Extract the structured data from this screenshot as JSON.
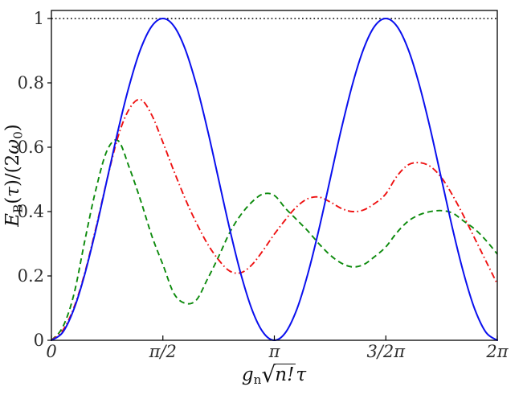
{
  "figure": {
    "background": "#ffffff",
    "frame_color": "#000000",
    "tick_label_color": "#2e2e2e"
  },
  "axes": {
    "x_axis": {
      "label_text": "g_n sqrt(n!) tau",
      "label_parts": {
        "symbol": "g",
        "symbol_sub": "n",
        "radical": "√",
        "radicand": "n!",
        "tau": "τ"
      }
    },
    "y_axis": {
      "label_text": "E_B(tau)/(2 omega_0)",
      "label_parts": {
        "E": "E",
        "E_sub": "B",
        "open": "(",
        "tau": "τ",
        "mid": ")/(2",
        "omega": "ω",
        "omega_sub": "0",
        "close": ")"
      }
    }
  },
  "chart_data": {
    "type": "line",
    "title": "",
    "xlabel": "g_n sqrt(n!) tau",
    "ylabel": "E_B(tau)/(2 omega_0)",
    "xlim": [
      0,
      6.2832
    ],
    "ylim": [
      0,
      1.025
    ],
    "grid": false,
    "legend": "none",
    "x_ticks": [
      {
        "value": 0,
        "label": "0"
      },
      {
        "value": 1.5708,
        "label": "π/2"
      },
      {
        "value": 3.1416,
        "label": "π"
      },
      {
        "value": 4.7124,
        "label": "3/2π"
      },
      {
        "value": 6.2832,
        "label": "2π"
      }
    ],
    "y_ticks": [
      {
        "value": 0,
        "label": "0"
      },
      {
        "value": 0.2,
        "label": "0.2"
      },
      {
        "value": 0.4,
        "label": "0.4"
      },
      {
        "value": 0.6,
        "label": "0.6"
      },
      {
        "value": 0.8,
        "label": "0.8"
      },
      {
        "value": 1,
        "label": "1"
      }
    ],
    "reference_line": {
      "y": 1.0,
      "color": "#000000",
      "style": "dotted"
    },
    "x": [
      0,
      0.157,
      0.314,
      0.471,
      0.628,
      0.785,
      0.942,
      1.1,
      1.257,
      1.414,
      1.571,
      1.728,
      1.885,
      2.042,
      2.199,
      2.356,
      2.513,
      2.67,
      2.827,
      2.985,
      3.142,
      3.299,
      3.456,
      3.613,
      3.77,
      3.927,
      4.084,
      4.241,
      4.398,
      4.555,
      4.712,
      4.869,
      5.027,
      5.184,
      5.341,
      5.498,
      5.655,
      5.812,
      5.969,
      6.126,
      6.283
    ],
    "series": [
      {
        "name": "green-dashed",
        "color": "#0c8a0c",
        "style": "dashed",
        "width": 1.9,
        "values": [
          0,
          0.04,
          0.14,
          0.31,
          0.47,
          0.59,
          0.62,
          0.535,
          0.435,
          0.325,
          0.235,
          0.145,
          0.115,
          0.125,
          0.19,
          0.26,
          0.335,
          0.39,
          0.43,
          0.455,
          0.45,
          0.41,
          0.375,
          0.34,
          0.3,
          0.265,
          0.24,
          0.228,
          0.235,
          0.26,
          0.29,
          0.335,
          0.37,
          0.39,
          0.4,
          0.403,
          0.395,
          0.37,
          0.345,
          0.31,
          0.268
        ]
      },
      {
        "name": "red-dashdot",
        "color": "#ee1111",
        "style": "dashdot",
        "width": 1.9,
        "values": [
          0,
          0.03,
          0.1,
          0.21,
          0.35,
          0.5,
          0.635,
          0.72,
          0.748,
          0.7,
          0.615,
          0.525,
          0.44,
          0.365,
          0.3,
          0.25,
          0.215,
          0.21,
          0.235,
          0.28,
          0.33,
          0.375,
          0.415,
          0.44,
          0.445,
          0.43,
          0.41,
          0.4,
          0.405,
          0.425,
          0.455,
          0.51,
          0.545,
          0.552,
          0.54,
          0.505,
          0.45,
          0.385,
          0.315,
          0.245,
          0.175
        ]
      },
      {
        "name": "blue-solid",
        "color": "#0a10ee",
        "style": "solid",
        "width": 2.0,
        "values": [
          0,
          0.024,
          0.095,
          0.206,
          0.345,
          0.5,
          0.655,
          0.794,
          0.905,
          0.976,
          1,
          0.976,
          0.905,
          0.794,
          0.655,
          0.5,
          0.345,
          0.206,
          0.095,
          0.024,
          0,
          0.024,
          0.095,
          0.206,
          0.345,
          0.5,
          0.655,
          0.794,
          0.905,
          0.976,
          1,
          0.976,
          0.905,
          0.794,
          0.655,
          0.5,
          0.345,
          0.206,
          0.095,
          0.024,
          0
        ]
      }
    ]
  }
}
